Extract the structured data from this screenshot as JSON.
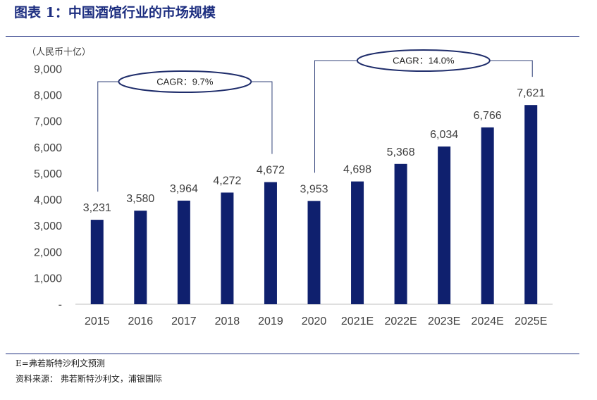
{
  "header": {
    "title": "图表 1：中国酒馆行业的市场规模"
  },
  "chart_data": {
    "type": "bar",
    "xlabel": "",
    "ylabel": "（人民币十亿）",
    "categories": [
      "2015",
      "2016",
      "2017",
      "2018",
      "2019",
      "2020",
      "2021E",
      "2022E",
      "2023E",
      "2024E",
      "2025E"
    ],
    "values": [
      3231,
      3580,
      3964,
      4272,
      4672,
      3953,
      4698,
      5368,
      6034,
      6766,
      7621
    ],
    "ylim": [
      0,
      9000
    ],
    "yticks": [
      0,
      1000,
      2000,
      3000,
      4000,
      5000,
      6000,
      7000,
      8000,
      9000
    ],
    "ytick_labels": [
      "-",
      "1,000",
      "2,000",
      "3,000",
      "4,000",
      "5,000",
      "6,000",
      "7,000",
      "8,000",
      "9,000"
    ],
    "grid": false,
    "annotations": [
      {
        "text": "CAGR：9.7%",
        "from": "2015",
        "to": "2019"
      },
      {
        "text": "CAGR：14.0%",
        "from": "2020",
        "to": "2025E"
      }
    ]
  },
  "footer": {
    "note": "E=弗若斯特沙利文预测",
    "source": "资料来源： 弗若斯特沙利文，浦银国际"
  },
  "colors": {
    "title": "#1d2e80",
    "rule": "#1d2e80",
    "bar": "#0f206e",
    "axis_text": "#404040",
    "axis_line": "#bfbfbf",
    "bracket": "#33437a",
    "ellipse": "#1f2d6b"
  }
}
